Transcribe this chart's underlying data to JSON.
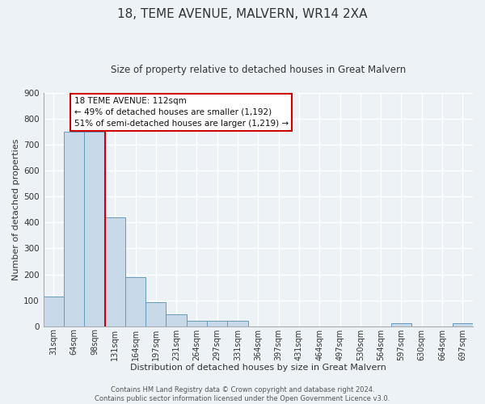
{
  "title": "18, TEME AVENUE, MALVERN, WR14 2XA",
  "subtitle": "Size of property relative to detached houses in Great Malvern",
  "xlabel": "Distribution of detached houses by size in Great Malvern",
  "ylabel": "Number of detached properties",
  "bar_labels": [
    "31sqm",
    "64sqm",
    "98sqm",
    "131sqm",
    "164sqm",
    "197sqm",
    "231sqm",
    "264sqm",
    "297sqm",
    "331sqm",
    "364sqm",
    "397sqm",
    "431sqm",
    "464sqm",
    "497sqm",
    "530sqm",
    "564sqm",
    "597sqm",
    "630sqm",
    "664sqm",
    "697sqm"
  ],
  "all_bar_values": [
    113,
    750,
    750,
    420,
    190,
    93,
    47,
    22,
    20,
    20,
    0,
    0,
    0,
    0,
    0,
    0,
    0,
    10,
    0,
    0,
    10
  ],
  "bar_color": "#c8daea",
  "bar_edge_color": "#6699bb",
  "ylim": [
    0,
    900
  ],
  "yticks": [
    0,
    100,
    200,
    300,
    400,
    500,
    600,
    700,
    800,
    900
  ],
  "red_line_x": 2.5,
  "annotation_text": "18 TEME AVENUE: 112sqm\n← 49% of detached houses are smaller (1,192)\n51% of semi-detached houses are larger (1,219) →",
  "annotation_box_color": "#ffffff",
  "annotation_box_edge": "#cc0000",
  "footer_line1": "Contains HM Land Registry data © Crown copyright and database right 2024.",
  "footer_line2": "Contains public sector information licensed under the Open Government Licence v3.0.",
  "background_color": "#edf2f7",
  "grid_color": "#ffffff",
  "num_bars": 21
}
